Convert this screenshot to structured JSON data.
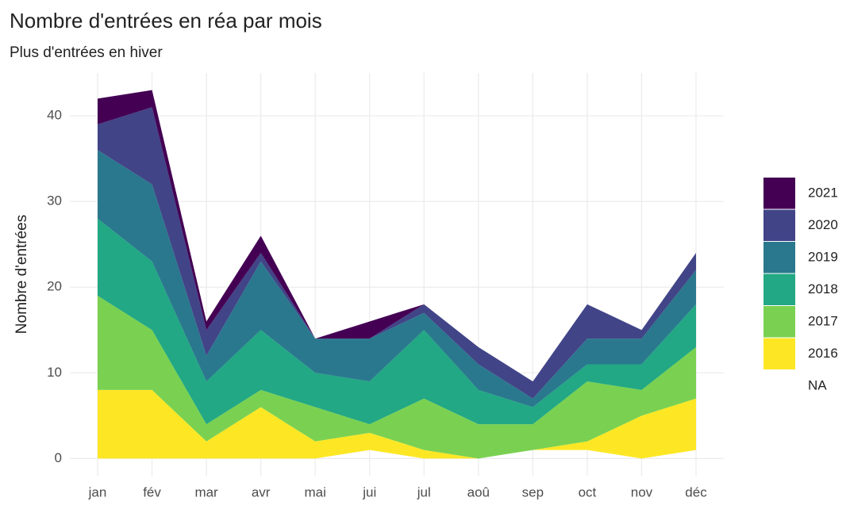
{
  "chart_data": {
    "type": "area",
    "stacked": true,
    "title": "Nombre d'entrées en réa par mois",
    "subtitle": "Plus d'entrées en hiver",
    "y_label": "Nombre d'entrées",
    "categories": [
      "jan",
      "fév",
      "mar",
      "avr",
      "mai",
      "jui",
      "jul",
      "aoû",
      "sep",
      "oct",
      "nov",
      "déc"
    ],
    "series": [
      {
        "name": "NA",
        "color": null,
        "values": [
          0,
          0,
          0,
          0,
          0,
          1,
          0,
          0,
          1,
          1,
          0,
          1
        ]
      },
      {
        "name": "2016",
        "color": "#FDE725",
        "values": [
          8,
          8,
          2,
          6,
          2,
          2,
          1,
          0,
          0,
          1,
          5,
          6
        ]
      },
      {
        "name": "2017",
        "color": "#7AD151",
        "values": [
          11,
          7,
          2,
          2,
          4,
          1,
          6,
          4,
          3,
          7,
          3,
          6
        ]
      },
      {
        "name": "2018",
        "color": "#22A884",
        "values": [
          9,
          8,
          5,
          7,
          4,
          5,
          8,
          4,
          2,
          2,
          3,
          5
        ]
      },
      {
        "name": "2019",
        "color": "#2A788E",
        "values": [
          8,
          9,
          3,
          8,
          4,
          5,
          2,
          3,
          1,
          3,
          3,
          4
        ]
      },
      {
        "name": "2020",
        "color": "#414487",
        "values": [
          3,
          9,
          3,
          1,
          0,
          0,
          1,
          2,
          2,
          4,
          1,
          2
        ]
      },
      {
        "name": "2021",
        "color": "#440154",
        "values": [
          3,
          2,
          1,
          2,
          0,
          2,
          0,
          0,
          0,
          0,
          0,
          0
        ]
      }
    ],
    "ylim": [
      -2,
      45
    ],
    "yticks": [
      0,
      10,
      20,
      30,
      40
    ],
    "grid": true,
    "legend": "right"
  }
}
